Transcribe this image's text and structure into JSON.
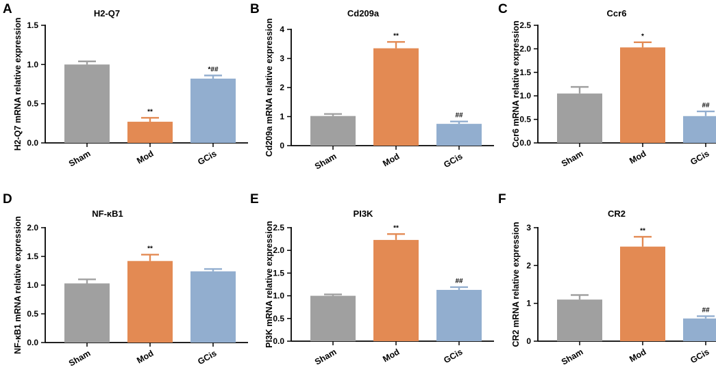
{
  "colors": {
    "Sham": "#a0a0a0",
    "Mod": "#e38a53",
    "GCis": "#92aecf"
  },
  "panels": [
    {
      "letter": "A",
      "chart_data": {
        "type": "bar",
        "title": "H2-Q7",
        "ylabel": "H2-Q7 mRNA relative expression",
        "categories": [
          "Sham",
          "Mod",
          "GCis"
        ],
        "values": [
          1.0,
          0.27,
          0.82
        ],
        "errors": [
          0.04,
          0.05,
          0.04
        ],
        "significance": [
          "",
          "**",
          "*##"
        ],
        "ylim": [
          0,
          1.5
        ],
        "yticks": [
          "0.0",
          "0.5",
          "1.0",
          "1.5"
        ]
      }
    },
    {
      "letter": "B",
      "chart_data": {
        "type": "bar",
        "title": "Cd209a",
        "ylabel": "Cd209a mRNA relative expression",
        "categories": [
          "Sham",
          "Mod",
          "GCis"
        ],
        "values": [
          1.02,
          3.35,
          0.75
        ],
        "errors": [
          0.07,
          0.22,
          0.08
        ],
        "significance": [
          "",
          "**",
          "##"
        ],
        "ylim": [
          0,
          4
        ],
        "yticks": [
          "0",
          "1",
          "2",
          "3",
          "4"
        ]
      }
    },
    {
      "letter": "C",
      "chart_data": {
        "type": "bar",
        "title": "Ccr6",
        "ylabel": "Ccr6 mRNA relative expression",
        "categories": [
          "Sham",
          "Mod",
          "GCis"
        ],
        "values": [
          1.05,
          2.03,
          0.57
        ],
        "errors": [
          0.14,
          0.11,
          0.1
        ],
        "significance": [
          "",
          "*",
          "##"
        ],
        "ylim": [
          0,
          2.5
        ],
        "yticks": [
          "0.0",
          "0.5",
          "1.0",
          "1.5",
          "2.0",
          "2.5"
        ]
      }
    },
    {
      "letter": "D",
      "chart_data": {
        "type": "bar",
        "title": "NF-κB1",
        "ylabel": "NF-κB1 mRNA relative expression",
        "categories": [
          "Sham",
          "Mod",
          "GCis"
        ],
        "values": [
          1.03,
          1.42,
          1.24
        ],
        "errors": [
          0.07,
          0.11,
          0.04
        ],
        "significance": [
          "",
          "**",
          ""
        ],
        "ylim": [
          0,
          2.0
        ],
        "yticks": [
          "0.0",
          "0.5",
          "1.0",
          "1.5",
          "2.0"
        ]
      }
    },
    {
      "letter": "E",
      "chart_data": {
        "type": "bar",
        "title": "PI3K",
        "ylabel": "PI3K mRNA relative expression",
        "categories": [
          "Sham",
          "Mod",
          "GCis"
        ],
        "values": [
          1.0,
          2.23,
          1.13
        ],
        "errors": [
          0.03,
          0.13,
          0.06
        ],
        "significance": [
          "",
          "**",
          "##"
        ],
        "ylim": [
          0,
          2.5
        ],
        "yticks": [
          "0.0",
          "0.5",
          "1.0",
          "1.5",
          "2.0",
          "2.5"
        ]
      }
    },
    {
      "letter": "F",
      "chart_data": {
        "type": "bar",
        "title": "CR2",
        "ylabel": "CR2 mRNA relative expression",
        "categories": [
          "Sham",
          "Mod",
          "GCis"
        ],
        "values": [
          1.1,
          2.5,
          0.6
        ],
        "errors": [
          0.12,
          0.26,
          0.06
        ],
        "significance": [
          "",
          "**",
          "##"
        ],
        "ylim": [
          0,
          3
        ],
        "yticks": [
          "0",
          "1",
          "2",
          "3"
        ]
      }
    }
  ]
}
